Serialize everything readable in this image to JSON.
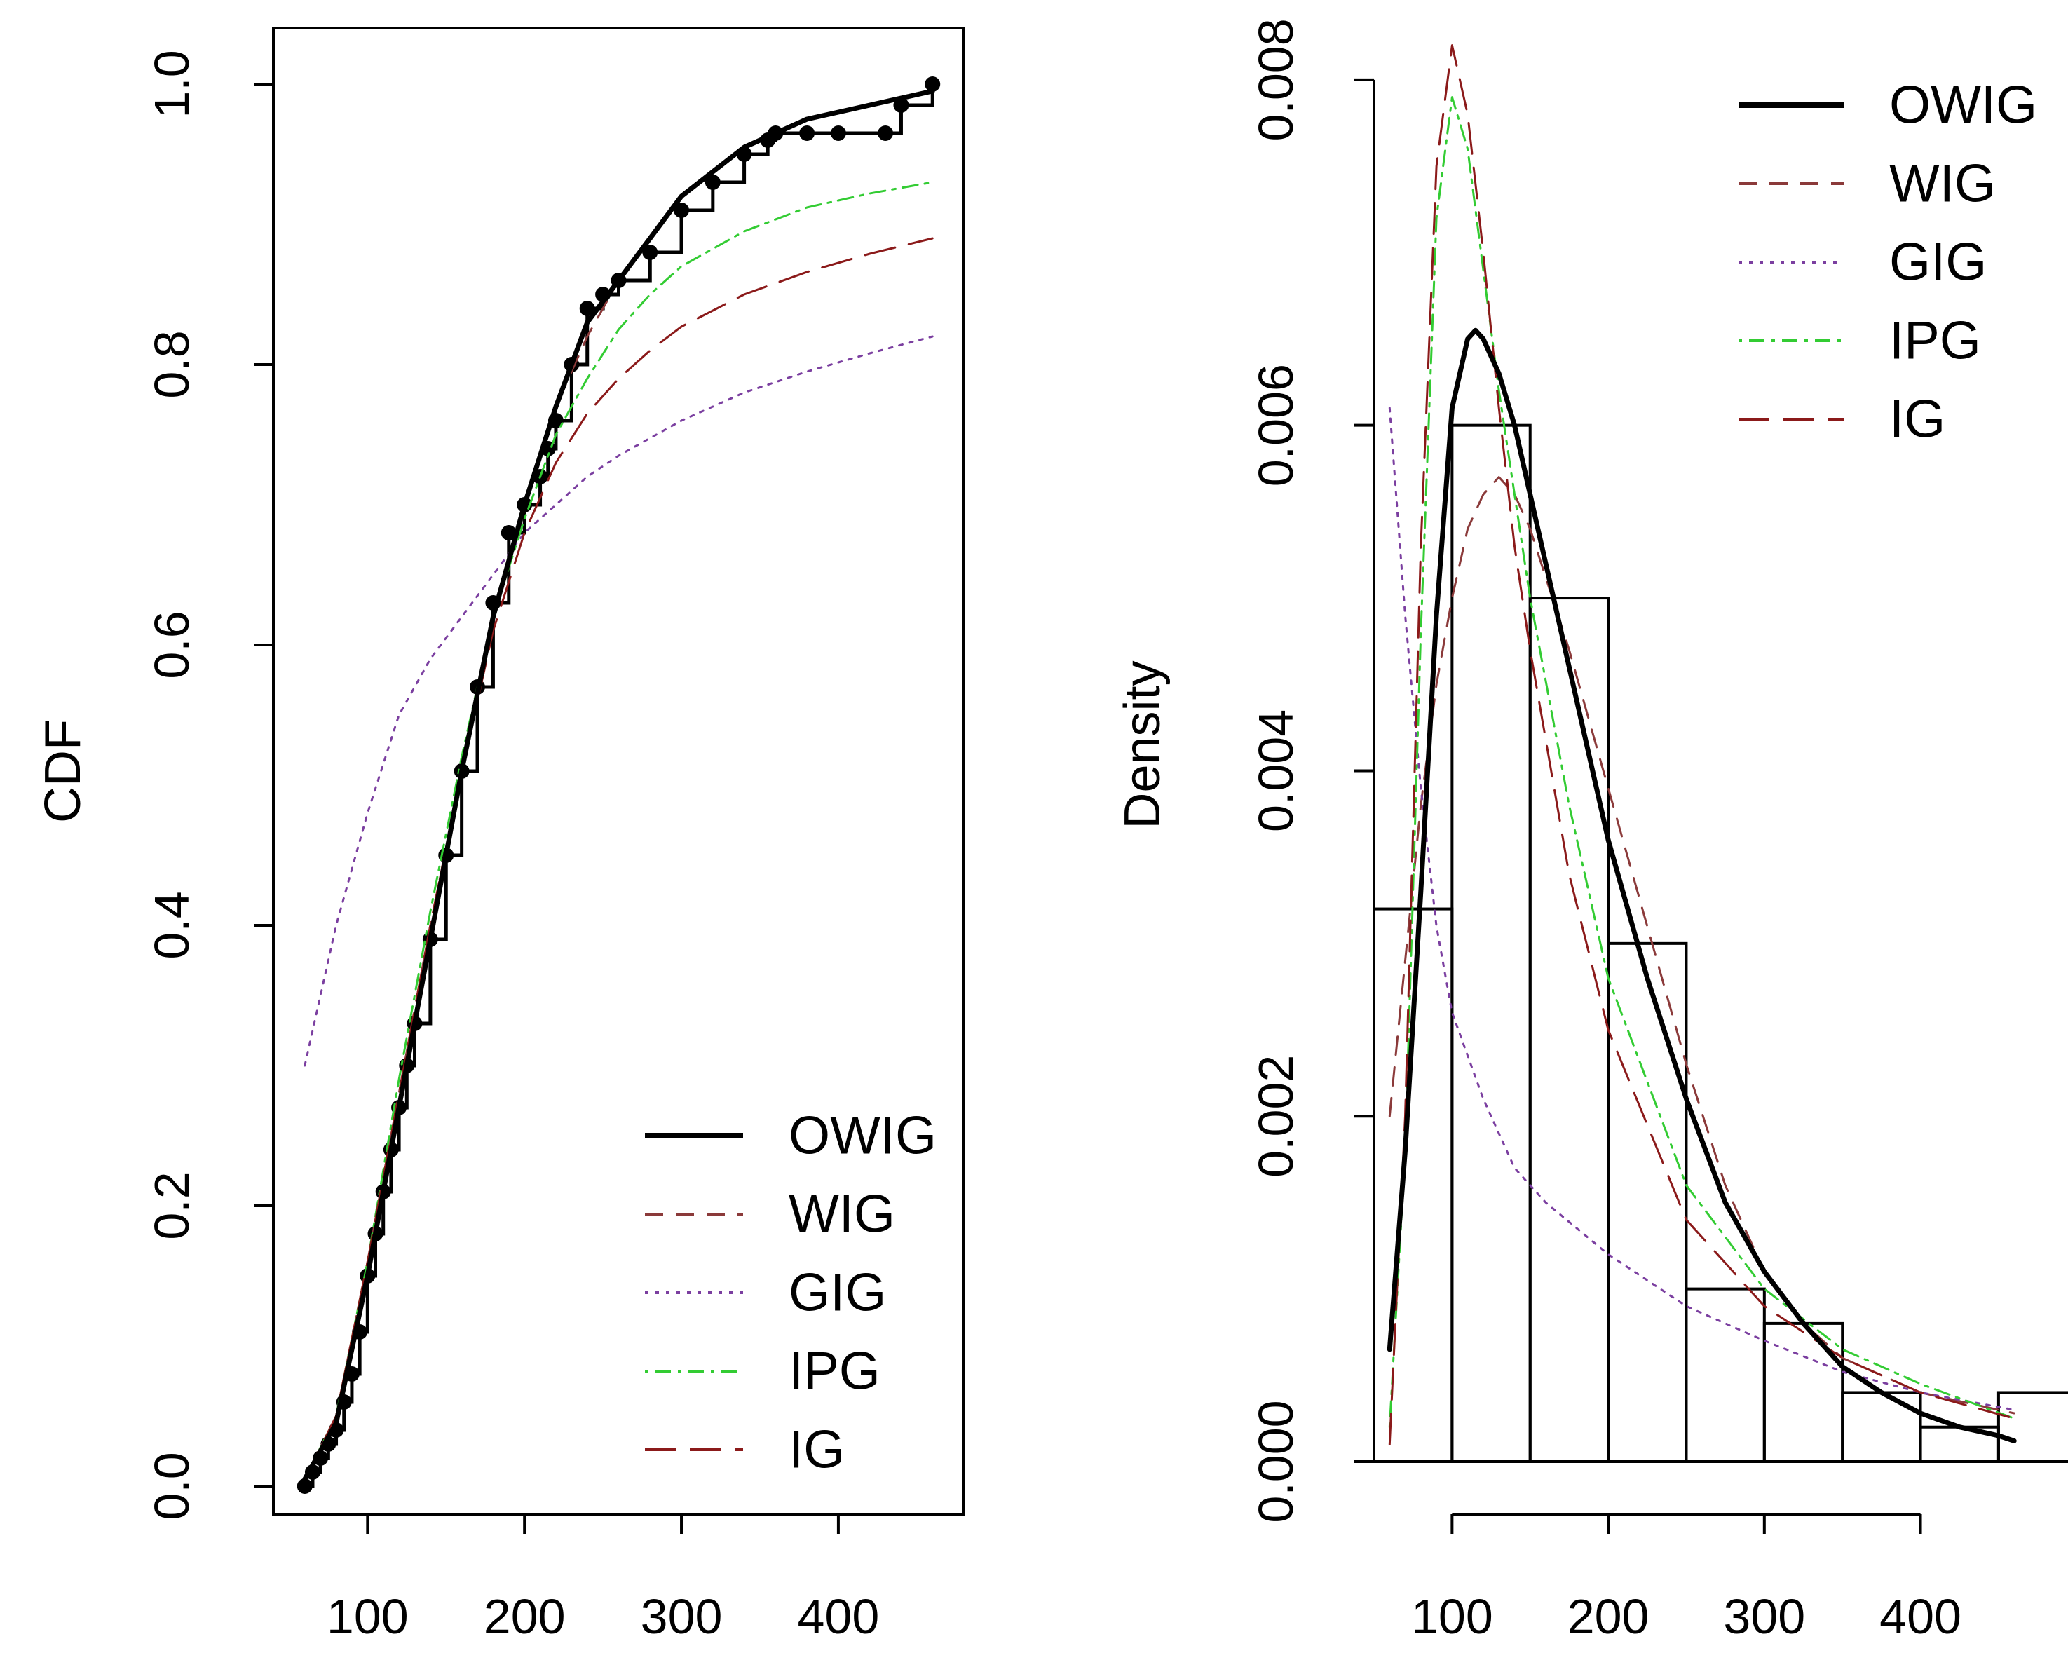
{
  "colors": {
    "OWIG": "#000000",
    "WIG": "#8b3a3a",
    "GIG": "#7b3fa0",
    "IPG": "#33cc33",
    "IG": "#8b1a1a",
    "axis": "#000000"
  },
  "chart_data": [
    {
      "type": "line",
      "title": "",
      "xlabel": "",
      "ylabel": "CDF",
      "xlim": [
        40,
        480
      ],
      "ylim": [
        -0.02,
        1.04
      ],
      "x_ticks": [
        100,
        200,
        300,
        400
      ],
      "x_tick_labels": [
        "100",
        "200",
        "300",
        "400"
      ],
      "y_ticks": [
        0.0,
        0.2,
        0.4,
        0.6,
        0.8,
        1.0
      ],
      "y_tick_labels": [
        "0.0",
        "0.2",
        "0.4",
        "0.6",
        "0.8",
        "1.0"
      ],
      "legend_position": "bottom-right",
      "legend": [
        "OWIG",
        "WIG",
        "GIG",
        "IPG",
        "IG"
      ],
      "empirical": {
        "x": [
          60,
          65,
          70,
          75,
          80,
          85,
          90,
          95,
          100,
          105,
          110,
          115,
          120,
          125,
          130,
          140,
          150,
          160,
          170,
          180,
          190,
          200,
          210,
          215,
          220,
          230,
          240,
          250,
          260,
          280,
          300,
          320,
          340,
          355,
          360,
          380,
          400,
          430,
          440,
          460
        ],
        "y": [
          0.0,
          0.01,
          0.02,
          0.03,
          0.04,
          0.06,
          0.08,
          0.11,
          0.15,
          0.18,
          0.21,
          0.24,
          0.27,
          0.3,
          0.33,
          0.39,
          0.45,
          0.51,
          0.57,
          0.63,
          0.68,
          0.7,
          0.72,
          0.74,
          0.76,
          0.8,
          0.84,
          0.85,
          0.86,
          0.88,
          0.91,
          0.93,
          0.95,
          0.96,
          0.965,
          0.965,
          0.965,
          0.965,
          0.985,
          1.0
        ]
      },
      "series": [
        {
          "name": "OWIG",
          "style": "solid",
          "x": [
            60,
            80,
            100,
            120,
            140,
            160,
            180,
            200,
            220,
            240,
            260,
            280,
            300,
            340,
            380,
            420,
            460
          ],
          "y": [
            0.005,
            0.045,
            0.15,
            0.27,
            0.39,
            0.51,
            0.62,
            0.7,
            0.77,
            0.83,
            0.86,
            0.89,
            0.92,
            0.955,
            0.975,
            0.985,
            0.995
          ]
        },
        {
          "name": "WIG",
          "style": "dashed",
          "x": [
            60,
            80,
            100,
            120,
            140,
            160,
            180,
            200,
            220,
            240,
            260,
            280,
            300,
            340,
            380,
            420,
            460
          ],
          "y": [
            0.005,
            0.05,
            0.16,
            0.28,
            0.4,
            0.51,
            0.62,
            0.7,
            0.77,
            0.82,
            0.86,
            0.89,
            0.92,
            0.955,
            0.975,
            0.985,
            0.995
          ]
        },
        {
          "name": "GIG",
          "style": "dotted",
          "x": [
            60,
            80,
            100,
            120,
            140,
            160,
            180,
            200,
            220,
            240,
            260,
            300,
            340,
            380,
            420,
            460
          ],
          "y": [
            0.3,
            0.4,
            0.48,
            0.55,
            0.59,
            0.62,
            0.65,
            0.68,
            0.7,
            0.72,
            0.735,
            0.76,
            0.78,
            0.795,
            0.808,
            0.82
          ]
        },
        {
          "name": "IPG",
          "style": "dotdash",
          "x": [
            60,
            80,
            100,
            120,
            140,
            160,
            180,
            200,
            220,
            240,
            260,
            280,
            300,
            340,
            380,
            420,
            460
          ],
          "y": [
            0.005,
            0.05,
            0.16,
            0.29,
            0.41,
            0.52,
            0.62,
            0.69,
            0.75,
            0.79,
            0.825,
            0.85,
            0.87,
            0.895,
            0.912,
            0.922,
            0.93
          ]
        },
        {
          "name": "IG",
          "style": "longdash",
          "x": [
            60,
            80,
            100,
            120,
            140,
            160,
            180,
            200,
            220,
            240,
            260,
            280,
            300,
            340,
            380,
            420,
            460
          ],
          "y": [
            0.005,
            0.05,
            0.16,
            0.28,
            0.4,
            0.51,
            0.61,
            0.68,
            0.73,
            0.765,
            0.79,
            0.81,
            0.827,
            0.85,
            0.866,
            0.879,
            0.89
          ]
        }
      ]
    },
    {
      "type": "histogram",
      "title": "",
      "xlabel": "",
      "ylabel": "Density",
      "xlim": [
        50,
        490
      ],
      "ylim": [
        0,
        0.0083
      ],
      "x_ticks": [
        100,
        200,
        300,
        400
      ],
      "x_tick_labels": [
        "100",
        "200",
        "300",
        "400"
      ],
      "y_ticks": [
        0.0,
        0.002,
        0.004,
        0.006,
        0.008
      ],
      "y_tick_labels": [
        "0.000",
        "0.002",
        "0.004",
        "0.006",
        "0.008"
      ],
      "legend_position": "top-right",
      "legend": [
        "OWIG",
        "WIG",
        "GIG",
        "IPG",
        "IG"
      ],
      "bins": [
        {
          "from": 50,
          "to": 100,
          "density": 0.0032
        },
        {
          "from": 100,
          "to": 150,
          "density": 0.006
        },
        {
          "from": 150,
          "to": 200,
          "density": 0.005
        },
        {
          "from": 200,
          "to": 250,
          "density": 0.003
        },
        {
          "from": 250,
          "to": 300,
          "density": 0.001
        },
        {
          "from": 300,
          "to": 350,
          "density": 0.0008
        },
        {
          "from": 350,
          "to": 400,
          "density": 0.0004
        },
        {
          "from": 400,
          "to": 450,
          "density": 0.0002
        },
        {
          "from": 450,
          "to": 500,
          "density": 0.0004
        }
      ],
      "series": [
        {
          "name": "OWIG",
          "style": "solid",
          "x": [
            60,
            70,
            80,
            90,
            100,
            110,
            115,
            120,
            130,
            140,
            150,
            175,
            200,
            225,
            250,
            275,
            300,
            325,
            350,
            375,
            400,
            425,
            450,
            460
          ],
          "y": [
            0.00065,
            0.0018,
            0.0033,
            0.0049,
            0.0061,
            0.0065,
            0.00655,
            0.0065,
            0.0063,
            0.006,
            0.0056,
            0.0046,
            0.0036,
            0.0028,
            0.0021,
            0.0015,
            0.0011,
            0.0008,
            0.00055,
            0.0004,
            0.00028,
            0.0002,
            0.00015,
            0.00012
          ]
        },
        {
          "name": "WIG",
          "style": "dashed",
          "x": [
            60,
            70,
            80,
            90,
            100,
            110,
            120,
            130,
            140,
            150,
            175,
            200,
            225,
            250,
            275,
            300,
            325,
            350,
            400,
            450,
            460
          ],
          "y": [
            0.002,
            0.0029,
            0.0038,
            0.0045,
            0.005,
            0.0054,
            0.0056,
            0.0057,
            0.0056,
            0.0054,
            0.0047,
            0.0039,
            0.0031,
            0.0023,
            0.0016,
            0.0011,
            0.0008,
            0.0006,
            0.0004,
            0.0003,
            0.00028
          ]
        },
        {
          "name": "GIG",
          "style": "dotted",
          "x": [
            60,
            70,
            80,
            90,
            100,
            120,
            140,
            160,
            200,
            250,
            300,
            350,
            400,
            460
          ],
          "y": [
            0.0061,
            0.0049,
            0.0039,
            0.0031,
            0.0026,
            0.0021,
            0.0017,
            0.0015,
            0.0012,
            0.0009,
            0.0007,
            0.00052,
            0.0004,
            0.0003
          ]
        },
        {
          "name": "IPG",
          "style": "dotdash",
          "x": [
            60,
            70,
            80,
            90,
            100,
            110,
            120,
            130,
            140,
            150,
            175,
            200,
            250,
            300,
            350,
            400,
            460
          ],
          "y": [
            0.0002,
            0.0018,
            0.0048,
            0.0072,
            0.0079,
            0.0076,
            0.0069,
            0.0062,
            0.0056,
            0.005,
            0.0038,
            0.0028,
            0.0016,
            0.001,
            0.00065,
            0.00045,
            0.00025
          ]
        },
        {
          "name": "IG",
          "style": "longdash",
          "x": [
            60,
            70,
            80,
            90,
            100,
            110,
            120,
            130,
            140,
            150,
            175,
            200,
            250,
            300,
            350,
            400,
            460
          ],
          "y": [
            0.0001,
            0.002,
            0.0053,
            0.0075,
            0.0082,
            0.0078,
            0.007,
            0.0061,
            0.0053,
            0.0047,
            0.0034,
            0.0025,
            0.0014,
            0.0009,
            0.0006,
            0.0004,
            0.00025
          ]
        }
      ]
    }
  ]
}
